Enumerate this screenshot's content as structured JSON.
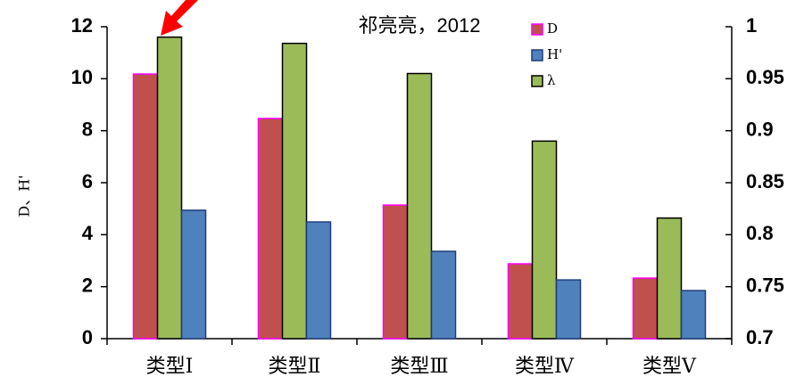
{
  "chart_data": {
    "type": "bar",
    "annotation": "祁亮亮，2012",
    "ylabel": "D、H'",
    "categories": [
      "类型Ⅰ",
      "类型Ⅱ",
      "类型Ⅲ",
      "类型Ⅳ",
      "类型Ⅴ"
    ],
    "series": [
      {
        "name": "D",
        "color": "#c0504d",
        "edgecolor": "#ff00ff",
        "values": [
          10.18,
          8.47,
          5.14,
          2.88,
          2.33
        ]
      },
      {
        "name": "H'",
        "color": "#4f81bd",
        "edgecolor": "#1f3d7a",
        "values": [
          4.94,
          4.49,
          3.36,
          2.26,
          1.85
        ]
      },
      {
        "name": "λ",
        "color": "#9bbb59",
        "edgecolor": "#000000",
        "axis": "y2",
        "values": [
          0.99,
          0.984,
          0.955,
          0.89,
          0.816
        ]
      }
    ],
    "bar_order": [
      0,
      2,
      1
    ],
    "ylim": [
      0,
      12
    ],
    "yticks": [
      0,
      2,
      4,
      6,
      8,
      10,
      12
    ],
    "y2lim": [
      0.7,
      1
    ],
    "y2ticks": [
      0.7,
      0.75,
      0.8,
      0.85,
      0.9,
      0.95,
      1
    ],
    "grid": false,
    "legend": "upper right"
  }
}
